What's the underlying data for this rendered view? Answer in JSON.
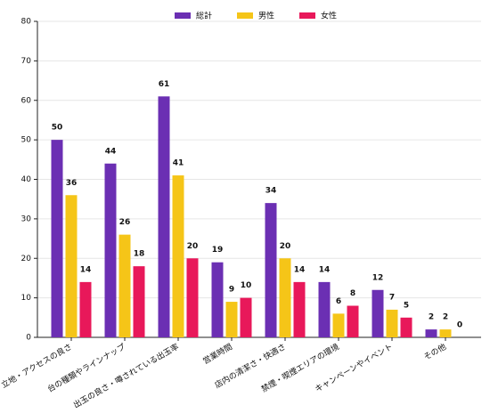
{
  "chart_data": {
    "type": "bar",
    "categories": [
      "立地・アクセスの良さ",
      "台の種類やラインナップ",
      "出玉の良さ・噂されている出玉率",
      "営業時間",
      "店内の清潔さ・快適さ",
      "禁煙・喫煙エリアの環境",
      "キャンペーンやイベント",
      "その他"
    ],
    "series": [
      {
        "name": "総計",
        "color": "#6b2fb3",
        "values": [
          50,
          44,
          61,
          19,
          34,
          14,
          12,
          2
        ]
      },
      {
        "name": "男性",
        "color": "#f5c518",
        "values": [
          36,
          26,
          41,
          9,
          20,
          6,
          7,
          2
        ]
      },
      {
        "name": "女性",
        "color": "#e8185a",
        "values": [
          14,
          18,
          20,
          10,
          14,
          8,
          5,
          0
        ]
      }
    ],
    "ylim": [
      0,
      80
    ],
    "yticks": [
      0,
      10,
      20,
      30,
      40,
      50,
      60,
      70,
      80
    ],
    "grid": true,
    "legend": "top"
  }
}
